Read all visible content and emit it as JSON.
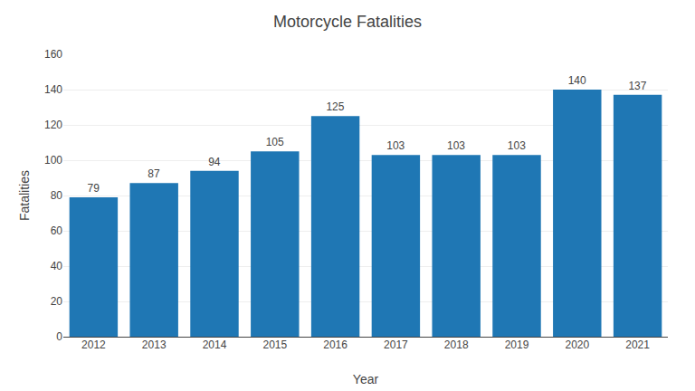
{
  "chart_data": {
    "type": "bar",
    "title": "Motorcycle Fatalities",
    "xlabel": "Year",
    "ylabel": "Fatalities",
    "categories": [
      "2012",
      "2013",
      "2014",
      "2015",
      "2016",
      "2017",
      "2018",
      "2019",
      "2020",
      "2021"
    ],
    "values": [
      79,
      87,
      94,
      105,
      125,
      103,
      103,
      103,
      140,
      137
    ],
    "ylim": [
      0,
      160
    ],
    "yticks": [
      0,
      20,
      40,
      60,
      80,
      100,
      120,
      140,
      160
    ],
    "grid": true,
    "data_labels": true
  }
}
